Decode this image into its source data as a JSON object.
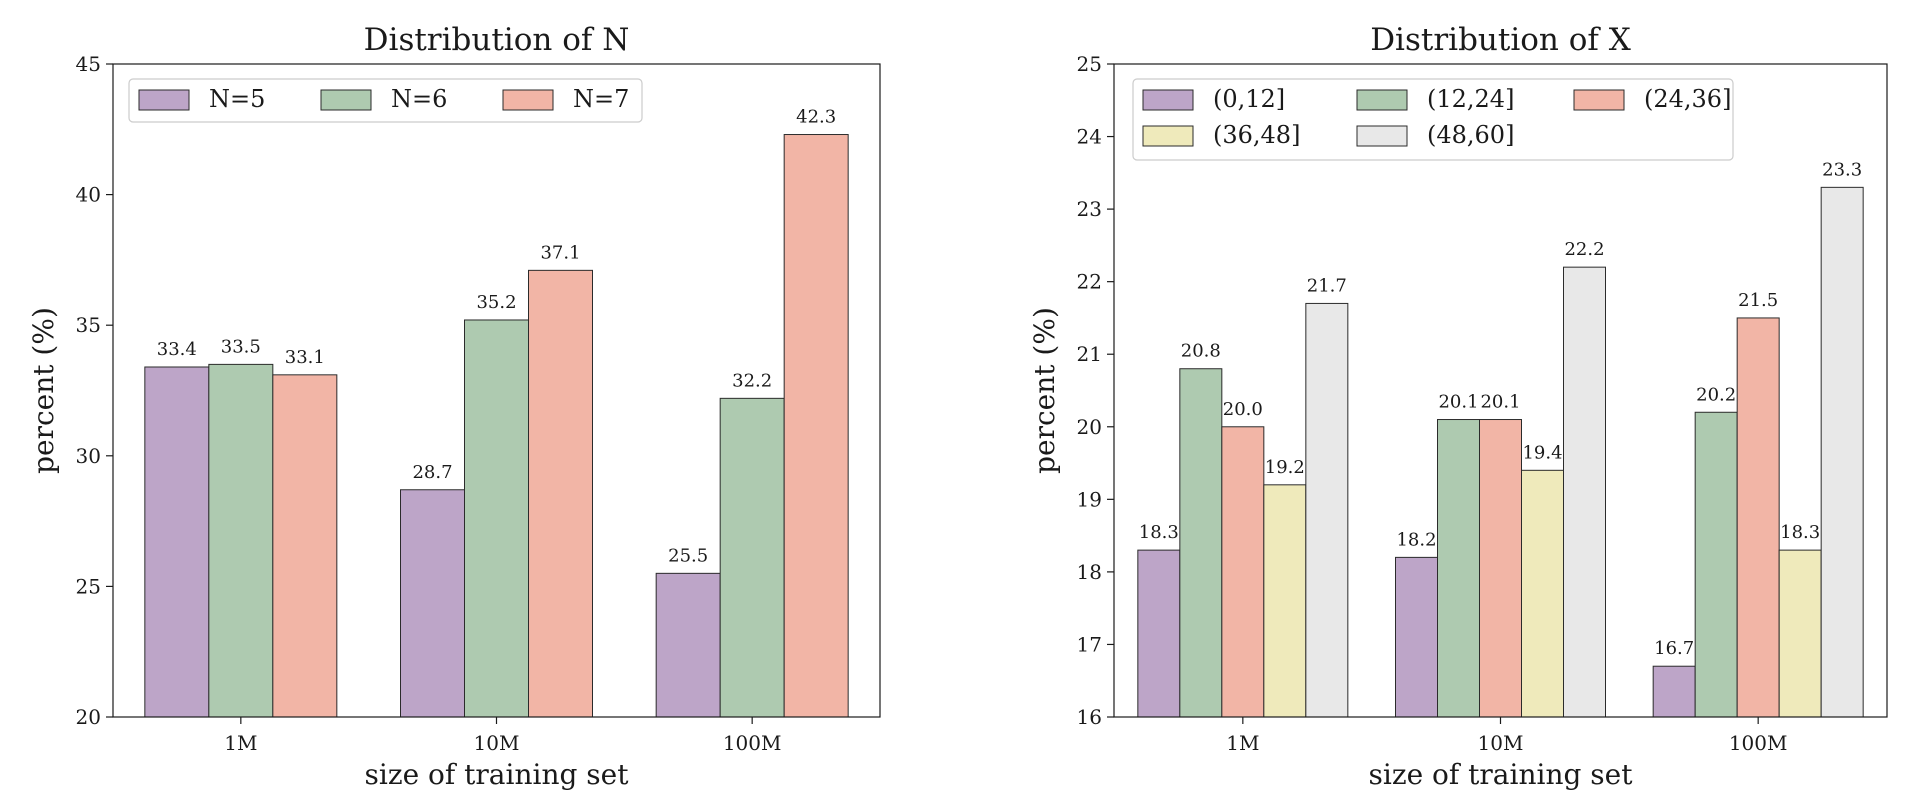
{
  "chart_data": [
    {
      "type": "bar",
      "title": "Distribution of N",
      "xlabel": "size of training set",
      "ylabel": "percent (%)",
      "categories": [
        "1M",
        "10M",
        "100M"
      ],
      "ylim": [
        20,
        45
      ],
      "yticks": [
        20,
        25,
        30,
        35,
        40,
        45
      ],
      "grid": false,
      "legend_position": "top-left",
      "legend_columns": 3,
      "series": [
        {
          "name": "N=5",
          "color": "#bda5c8",
          "values": [
            33.4,
            28.7,
            25.5
          ],
          "labels": [
            "33.4",
            "28.7",
            "25.5"
          ]
        },
        {
          "name": "N=6",
          "color": "#aecab0",
          "values": [
            33.5,
            35.2,
            32.2
          ],
          "labels": [
            "33.5",
            "35.2",
            "32.2"
          ]
        },
        {
          "name": "N=7",
          "color": "#f2b5a6",
          "values": [
            33.1,
            37.1,
            42.3
          ],
          "labels": [
            "33.1",
            "37.1",
            "42.3"
          ]
        }
      ]
    },
    {
      "type": "bar",
      "title": "Distribution of X",
      "xlabel": "size of training set",
      "ylabel": "percent (%)",
      "categories": [
        "1M",
        "10M",
        "100M"
      ],
      "ylim": [
        16,
        25
      ],
      "yticks": [
        16,
        17,
        18,
        19,
        20,
        21,
        22,
        23,
        24,
        25
      ],
      "grid": false,
      "legend_position": "top-left",
      "legend_columns": 3,
      "series": [
        {
          "name": "(0,12]",
          "color": "#bda5c8",
          "values": [
            18.3,
            18.2,
            16.7
          ],
          "labels": [
            "18.3",
            "18.2",
            "16.7"
          ]
        },
        {
          "name": "(12,24]",
          "color": "#aecab0",
          "values": [
            20.8,
            20.1,
            20.2
          ],
          "labels": [
            "20.8",
            "20.1",
            "20.2"
          ]
        },
        {
          "name": "(24,36]",
          "color": "#f2b5a6",
          "values": [
            20.0,
            20.1,
            21.5
          ],
          "labels": [
            "20.0",
            "20.1",
            "21.5"
          ]
        },
        {
          "name": "(36,48]",
          "color": "#efeabb",
          "values": [
            19.2,
            19.4,
            18.3
          ],
          "labels": [
            "19.2",
            "19.4",
            "18.3"
          ]
        },
        {
          "name": "(48,60]",
          "color": "#e8e8e8",
          "values": [
            21.7,
            22.2,
            23.3
          ],
          "labels": [
            "21.7",
            "22.2",
            "23.3"
          ]
        }
      ]
    }
  ]
}
